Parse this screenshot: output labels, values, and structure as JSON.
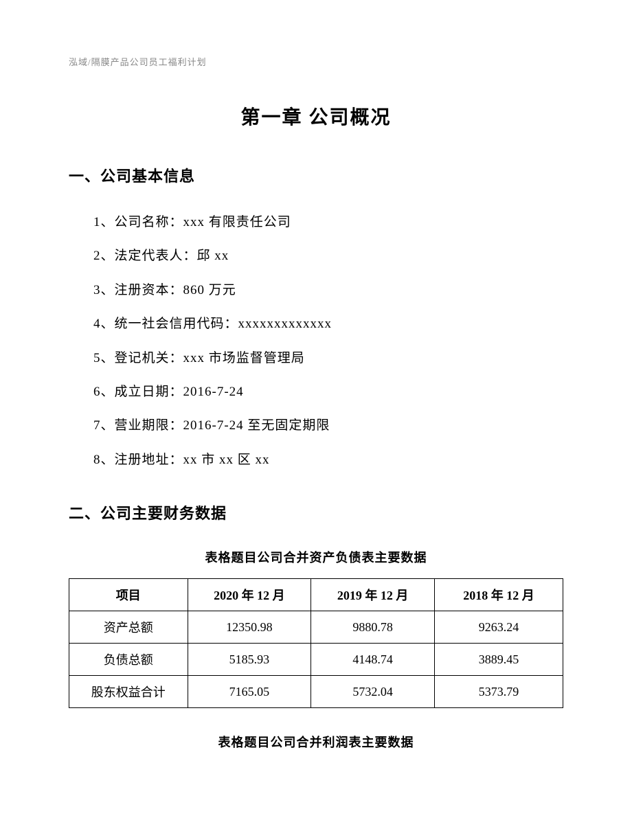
{
  "header": "泓域/隔膜产品公司员工福利计划",
  "chapter_title": "第一章 公司概况",
  "section1": {
    "title": "一、公司基本信息",
    "items": [
      "1、公司名称：xxx 有限责任公司",
      "2、法定代表人：邱 xx",
      "3、注册资本：860 万元",
      "4、统一社会信用代码：xxxxxxxxxxxxx",
      "5、登记机关：xxx 市场监督管理局",
      "6、成立日期：2016-7-24",
      "7、营业期限：2016-7-24 至无固定期限",
      "8、注册地址：xx 市 xx 区 xx"
    ]
  },
  "section2": {
    "title": "二、公司主要财务数据"
  },
  "table1": {
    "title": "表格题目公司合并资产负债表主要数据",
    "columns": [
      "项目",
      "2020 年 12 月",
      "2019 年 12 月",
      "2018 年 12 月"
    ],
    "rows": [
      [
        "资产总额",
        "12350.98",
        "9880.78",
        "9263.24"
      ],
      [
        "负债总额",
        "5185.93",
        "4148.74",
        "3889.45"
      ],
      [
        "股东权益合计",
        "7165.05",
        "5732.04",
        "5373.79"
      ]
    ],
    "col_widths": [
      "24%",
      "25%",
      "25%",
      "26%"
    ],
    "border_color": "#000000",
    "font_size": 18
  },
  "table2": {
    "title": "表格题目公司合并利润表主要数据"
  }
}
